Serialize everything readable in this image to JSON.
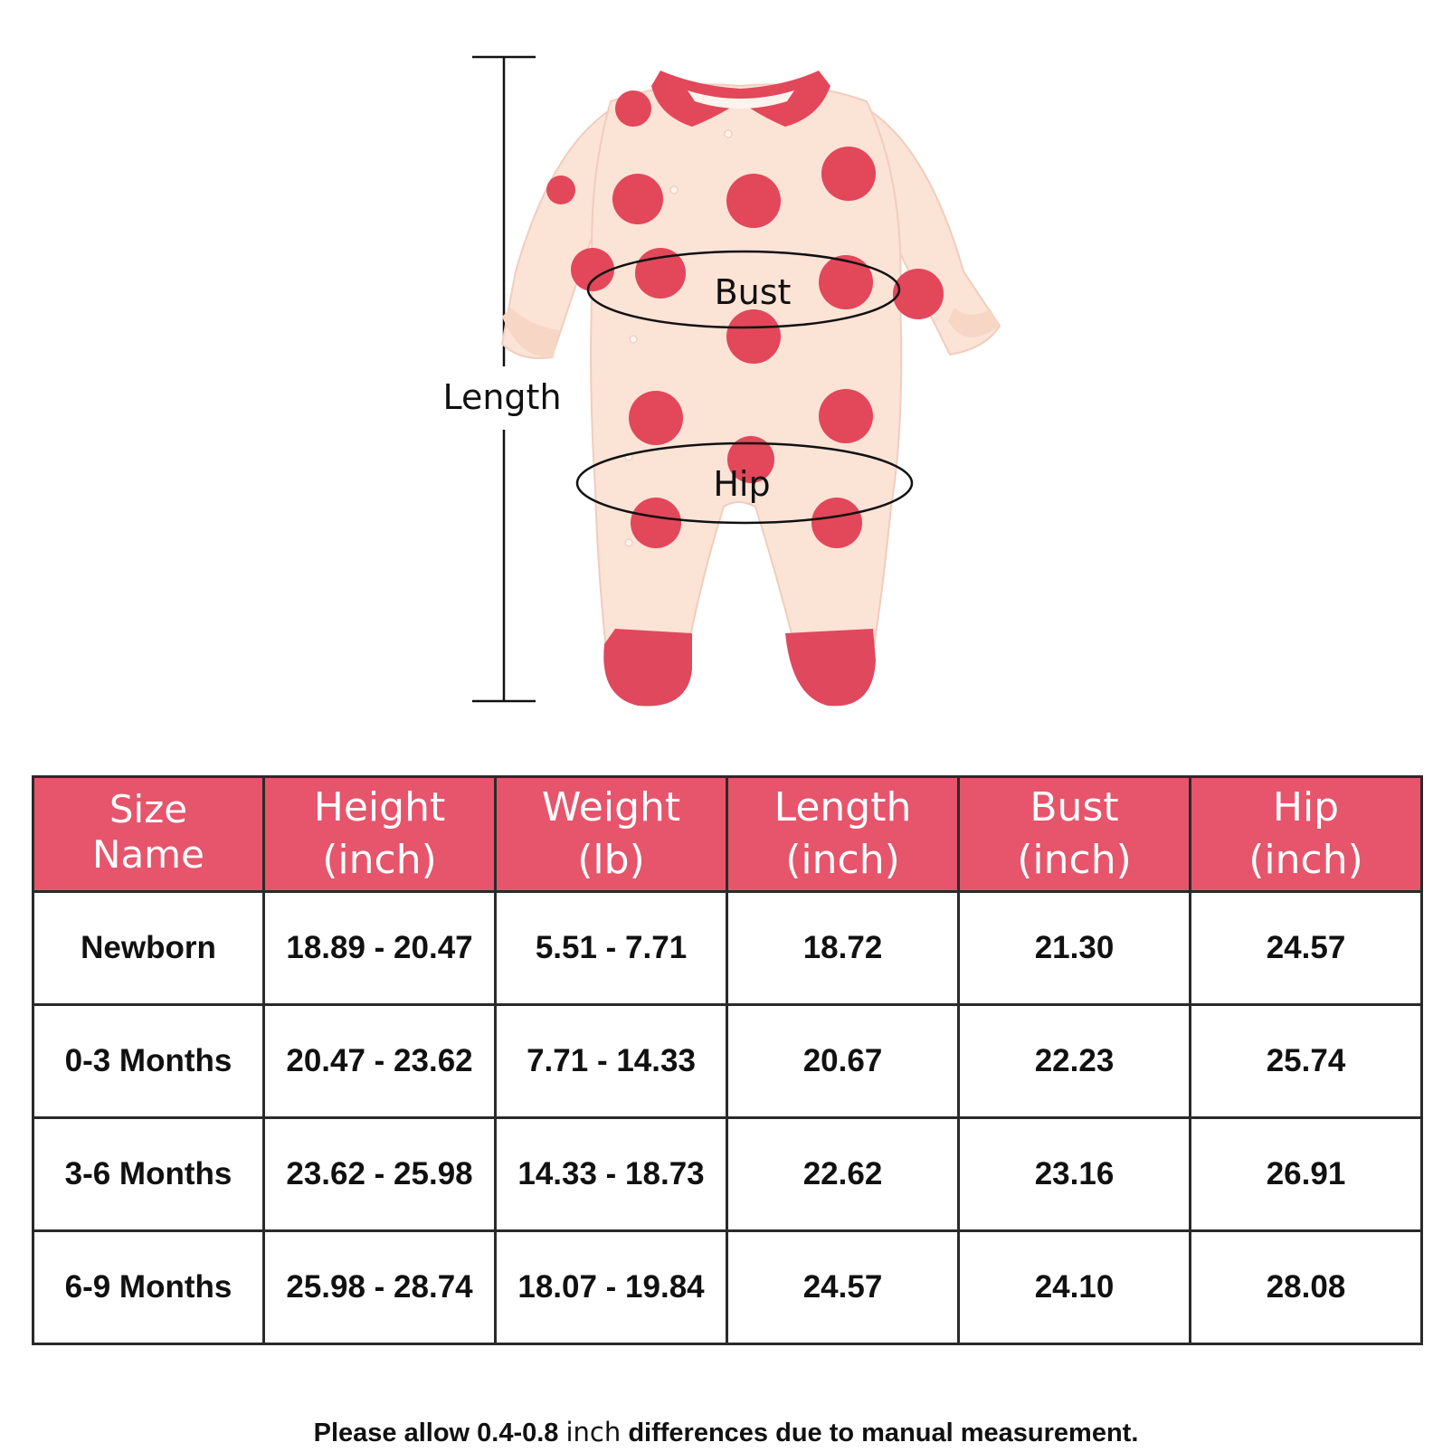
{
  "colors": {
    "header_bg": "#e6556b",
    "garment_base": "#fbe3d6",
    "garment_accent": "#e3475a",
    "border": "#2a2a2a"
  },
  "diagram": {
    "length_label": "Length",
    "bust_label": "Bust",
    "hip_label": "Hip"
  },
  "table": {
    "headers": [
      {
        "line1": "Size",
        "line2": "Name"
      },
      {
        "line1": "Height",
        "line2": "(inch)"
      },
      {
        "line1": "Weight",
        "line2": "(lb)"
      },
      {
        "line1": "Length",
        "line2": "(inch)"
      },
      {
        "line1": "Bust",
        "line2": "(inch)"
      },
      {
        "line1": "Hip",
        "line2": "(inch)"
      }
    ],
    "rows": [
      [
        "Newborn",
        "18.89 - 20.47",
        "5.51 - 7.71",
        "18.72",
        "21.30",
        "24.57"
      ],
      [
        "0-3 Months",
        "20.47 - 23.62",
        "7.71 - 14.33",
        "20.67",
        "22.23",
        "25.74"
      ],
      [
        "3-6 Months",
        "23.62 - 25.98",
        "14.33 - 18.73",
        "22.62",
        "23.16",
        "26.91"
      ],
      [
        "6-9 Months",
        "25.98 - 28.74",
        "18.07 - 19.84",
        "24.57",
        "24.10",
        "28.08"
      ]
    ]
  },
  "note": {
    "before": "Please allow 0.4-0.8 ",
    "unit": "inch",
    "after": " differences due to manual measurement."
  }
}
